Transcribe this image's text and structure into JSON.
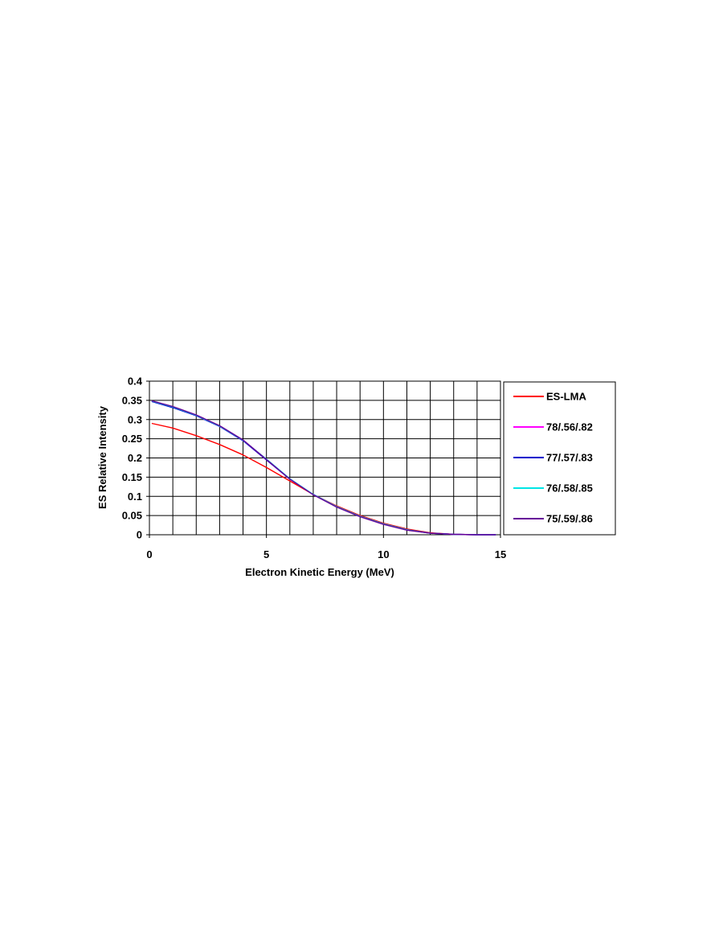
{
  "chart_data": {
    "type": "line",
    "xlabel": "Electron Kinetic Energy (MeV)",
    "ylabel": "ES Relative Intensity",
    "xlim": [
      0,
      15
    ],
    "ylim": [
      0,
      0.4
    ],
    "x_ticks": [
      "0",
      "5",
      "10",
      "15"
    ],
    "y_ticks": [
      "0",
      "0.05",
      "0.1",
      "0.15",
      "0.2",
      "0.25",
      "0.3",
      "0.35",
      "0.4"
    ],
    "x_gridlines": [
      0,
      1,
      2,
      3,
      4,
      5,
      6,
      7,
      8,
      9,
      10,
      11,
      12,
      13,
      14,
      15
    ],
    "grid": true,
    "legend_position": "right",
    "series": [
      {
        "name": "ES-LMA",
        "color": "#ff0000",
        "x": [
          0.1,
          1,
          2,
          3,
          4,
          5,
          6,
          7,
          8,
          9,
          10,
          11,
          12,
          13,
          14,
          14.8
        ],
        "y": [
          0.29,
          0.278,
          0.258,
          0.235,
          0.208,
          0.175,
          0.14,
          0.105,
          0.075,
          0.05,
          0.03,
          0.015,
          0.005,
          0.001,
          0,
          0
        ]
      },
      {
        "name": "78/.56/.82",
        "color": "#ff00ff",
        "x": [
          0.1,
          1,
          2,
          3,
          4,
          5,
          6,
          7,
          8,
          9,
          10,
          11,
          12,
          13,
          14,
          14.8
        ],
        "y": [
          0.348,
          0.332,
          0.31,
          0.282,
          0.245,
          0.195,
          0.145,
          0.105,
          0.073,
          0.048,
          0.028,
          0.013,
          0.004,
          0.001,
          0,
          0
        ]
      },
      {
        "name": "77/.57/.83",
        "color": "#0000cc",
        "x": [
          0.1,
          1,
          2,
          3,
          4,
          5,
          6,
          7,
          8,
          9,
          10,
          11,
          12,
          13,
          14,
          14.8
        ],
        "y": [
          0.347,
          0.331,
          0.31,
          0.282,
          0.245,
          0.195,
          0.145,
          0.105,
          0.073,
          0.048,
          0.028,
          0.013,
          0.004,
          0.001,
          0,
          0
        ]
      },
      {
        "name": "76/.58/.85",
        "color": "#00e5e5",
        "x": [
          0.1,
          1,
          2,
          3,
          4,
          5,
          6,
          7,
          8,
          9,
          10,
          11,
          12,
          13,
          14,
          14.8
        ],
        "y": [
          0.348,
          0.333,
          0.311,
          0.283,
          0.246,
          0.197,
          0.146,
          0.105,
          0.073,
          0.048,
          0.028,
          0.013,
          0.004,
          0.001,
          0,
          0
        ]
      },
      {
        "name": "75/.59/.86",
        "color": "#660099",
        "x": [
          0.1,
          1,
          2,
          3,
          4,
          5,
          6,
          7,
          8,
          9,
          10,
          11,
          12,
          13,
          14,
          14.8
        ],
        "y": [
          0.349,
          0.334,
          0.312,
          0.284,
          0.247,
          0.196,
          0.145,
          0.104,
          0.072,
          0.047,
          0.027,
          0.012,
          0.004,
          0.001,
          0,
          0
        ]
      }
    ]
  }
}
